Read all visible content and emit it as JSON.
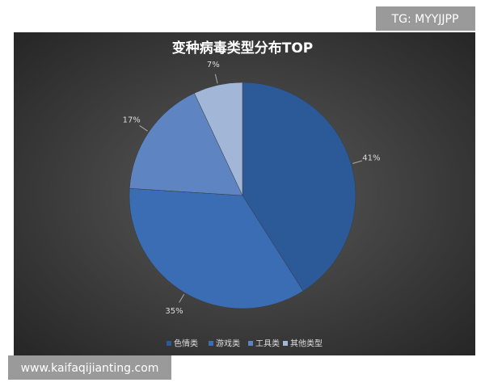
{
  "watermarks": {
    "top": "TG: MYYJJPP",
    "bottom": "www.kaifaqijianting.com"
  },
  "chart_data": {
    "type": "pie",
    "title": "变种病毒类型分布TOP",
    "categories": [
      "色情类",
      "游戏类",
      "工具类",
      "其他类型"
    ],
    "values": [
      41,
      35,
      17,
      7
    ],
    "value_labels": [
      "41%",
      "35%",
      "17%",
      "7%"
    ],
    "colors": [
      "#2c5a98",
      "#3a6db4",
      "#5e85c2",
      "#a2b6d8"
    ],
    "legend": "bottom"
  }
}
